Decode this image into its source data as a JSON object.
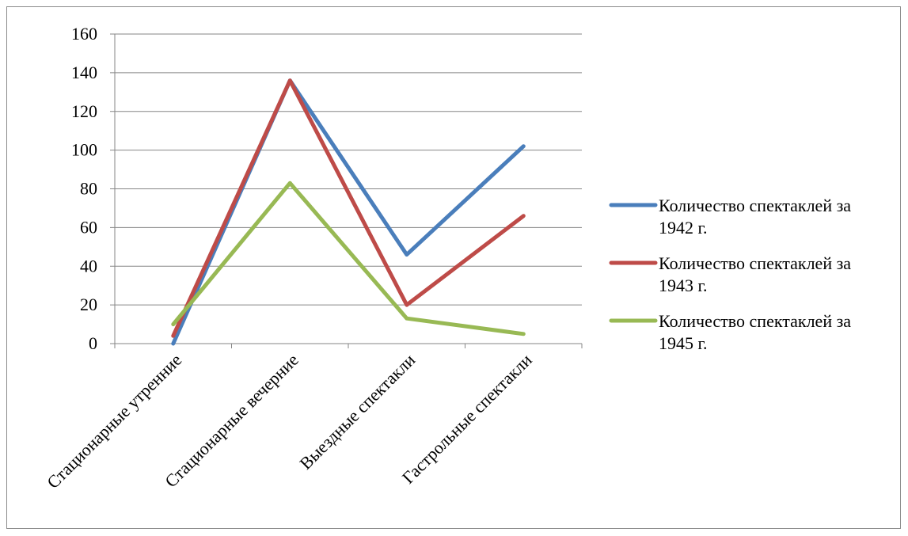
{
  "chart_data": {
    "type": "line",
    "categories": [
      "Стационарные утренние",
      "Стационарные вечерние",
      "Выездные спектакли",
      "Гастрольные спектакли"
    ],
    "series": [
      {
        "name": "Количество спектаклей за 1942 г.",
        "color": "#4a7ebb",
        "values": [
          0,
          136,
          46,
          102
        ]
      },
      {
        "name": "Количество спектаклей за 1943 г.",
        "color": "#be4b48",
        "values": [
          4,
          136,
          20,
          66
        ]
      },
      {
        "name": "Количество спектаклей за 1945 г.",
        "color": "#98b954",
        "values": [
          10,
          83,
          13,
          5
        ]
      }
    ],
    "ylim": [
      0,
      160
    ],
    "yticks": [
      0,
      20,
      40,
      60,
      80,
      100,
      120,
      140,
      160
    ],
    "grid": true,
    "legend_position": "right"
  }
}
